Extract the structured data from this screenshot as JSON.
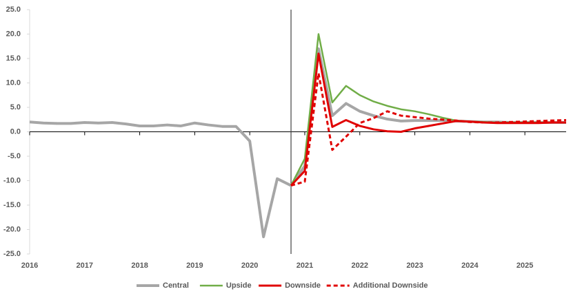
{
  "chart_data": {
    "type": "line",
    "x": [
      2016,
      2016.25,
      2016.5,
      2016.75,
      2017,
      2017.25,
      2017.5,
      2017.75,
      2018,
      2018.25,
      2018.5,
      2018.75,
      2019,
      2019.25,
      2019.5,
      2019.75,
      2020,
      2020.25,
      2020.5,
      2020.75,
      2021,
      2021.25,
      2021.5,
      2021.75,
      2022,
      2022.25,
      2022.5,
      2022.75,
      2023,
      2023.25,
      2023.5,
      2023.75,
      2024,
      2024.25,
      2024.5,
      2024.75,
      2025,
      2025.25,
      2025.5,
      2025.75
    ],
    "series": [
      {
        "name": "Central",
        "color": "#a6a6a6",
        "width": 4,
        "dash": false,
        "values": [
          2.0,
          1.8,
          1.7,
          1.7,
          1.9,
          1.8,
          1.9,
          1.6,
          1.2,
          1.2,
          1.4,
          1.2,
          1.8,
          1.4,
          1.1,
          1.1,
          -1.9,
          -21.5,
          -9.6,
          -11.0,
          -7.0,
          17.0,
          3.3,
          5.8,
          4.2,
          3.3,
          2.6,
          2.2,
          2.3,
          2.3,
          2.3,
          2.2,
          2.1,
          2.0,
          2.0,
          1.9,
          1.9,
          1.9,
          1.9,
          1.9
        ]
      },
      {
        "name": "Upside",
        "color": "#70ad47",
        "width": 2.5,
        "dash": false,
        "values": [
          null,
          null,
          null,
          null,
          null,
          null,
          null,
          null,
          null,
          null,
          null,
          null,
          null,
          null,
          null,
          null,
          null,
          null,
          null,
          -11.0,
          -5.5,
          20.0,
          6.0,
          9.4,
          7.5,
          6.2,
          5.3,
          4.6,
          4.2,
          3.6,
          2.9,
          2.3,
          2.1,
          2.0,
          1.9,
          1.9,
          1.9,
          1.9,
          1.9,
          1.9
        ]
      },
      {
        "name": "Downside",
        "color": "#e00000",
        "width": 3,
        "dash": false,
        "values": [
          null,
          null,
          null,
          null,
          null,
          null,
          null,
          null,
          null,
          null,
          null,
          null,
          null,
          null,
          null,
          null,
          null,
          null,
          null,
          -11.0,
          -8.0,
          16.0,
          1.0,
          2.4,
          1.2,
          0.5,
          0.1,
          0.0,
          0.7,
          1.2,
          1.7,
          2.2,
          2.1,
          1.9,
          1.8,
          1.8,
          1.8,
          1.8,
          1.9,
          1.9
        ]
      },
      {
        "name": "Additional Downside",
        "color": "#e00000",
        "width": 3,
        "dash": true,
        "values": [
          null,
          null,
          null,
          null,
          null,
          null,
          null,
          null,
          null,
          null,
          null,
          null,
          null,
          null,
          null,
          null,
          null,
          null,
          null,
          -11.0,
          -10.2,
          12.0,
          -3.7,
          -1.0,
          1.8,
          2.8,
          4.2,
          3.3,
          3.0,
          2.7,
          2.5,
          2.3,
          2.0,
          1.9,
          1.9,
          2.0,
          2.1,
          2.2,
          2.3,
          2.4
        ]
      }
    ],
    "xlim": [
      2016,
      2025.75
    ],
    "xticks": [
      2016,
      2017,
      2018,
      2019,
      2020,
      2021,
      2022,
      2023,
      2024,
      2025
    ],
    "ylim": [
      -25,
      25
    ],
    "yticks": [
      {
        "value": 25,
        "label": "25.0"
      },
      {
        "value": 20,
        "label": "20.0"
      },
      {
        "value": 15,
        "label": "15.0"
      },
      {
        "value": 10,
        "label": "10.0"
      },
      {
        "value": 5,
        "label": "5.0"
      },
      {
        "value": 0,
        "label": "0.0"
      },
      {
        "value": -5,
        "label": "-5.0"
      },
      {
        "value": -10,
        "label": "-10.0"
      },
      {
        "value": -15,
        "label": "-15.0"
      },
      {
        "value": -20,
        "label": "-20.0"
      },
      {
        "value": -25,
        "label": "-25.0"
      }
    ],
    "vline_x": 2020.75,
    "legend": "bottom"
  }
}
